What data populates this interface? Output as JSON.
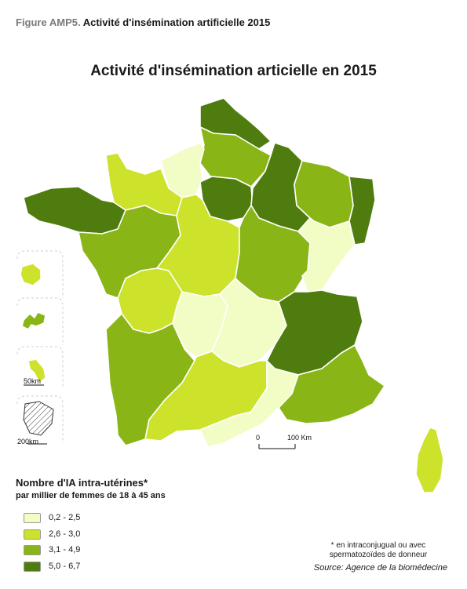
{
  "figure": {
    "number": "Figure AMP5.",
    "caption": "Activité d'insémination artificielle 2015"
  },
  "map_title": "Activité d'insémination articielle en 2015",
  "scale_bar": {
    "label_zero": "0",
    "label_100": "100 Km"
  },
  "insets": [
    {
      "name": "reunion",
      "fill_class": 1
    },
    {
      "name": "guadeloupe",
      "fill_class": 2
    },
    {
      "name": "martinique",
      "fill_class": 1,
      "scale_label": "50km"
    },
    {
      "name": "guyane",
      "fill_class": "nd",
      "scale_label": "200km"
    }
  ],
  "legend": {
    "title": "Nombre d'IA intra-utérines*",
    "subtitle": "par millier de femmes de 18 à 45 ans",
    "items": [
      {
        "label": "0,2 - 2,5",
        "color": "#f2fcc5"
      },
      {
        "label": "2,6 - 3,0",
        "color": "#cce22b"
      },
      {
        "label": "3,1 - 4,9",
        "color": "#8ab517"
      },
      {
        "label": "5,0 - 6,7",
        "color": "#4f7c0f"
      }
    ]
  },
  "regions": [
    {
      "name": "nord",
      "class": 3
    },
    {
      "name": "picardie",
      "class": 2
    },
    {
      "name": "haute-normandie",
      "class": 0
    },
    {
      "name": "basse-normandie",
      "class": 1
    },
    {
      "name": "bretagne",
      "class": 3
    },
    {
      "name": "ile-de-france",
      "class": 3
    },
    {
      "name": "champagne-ardenne",
      "class": 3
    },
    {
      "name": "lorraine",
      "class": 2
    },
    {
      "name": "alsace",
      "class": 3
    },
    {
      "name": "pays-de-la-loire",
      "class": 2
    },
    {
      "name": "centre",
      "class": 1
    },
    {
      "name": "bourgogne",
      "class": 2
    },
    {
      "name": "franche-comte",
      "class": 0
    },
    {
      "name": "poitou-charentes",
      "class": 1
    },
    {
      "name": "limousin",
      "class": 0
    },
    {
      "name": "auvergne",
      "class": 0
    },
    {
      "name": "rhone-alpes",
      "class": 3
    },
    {
      "name": "aquitaine",
      "class": 2
    },
    {
      "name": "midi-pyrenees",
      "class": 1
    },
    {
      "name": "languedoc-roussillon",
      "class": 0
    },
    {
      "name": "paca",
      "class": 2
    },
    {
      "name": "corse",
      "class": 1
    }
  ],
  "note": "* en intraconjugual ou avec spermatozoïdes de donneur",
  "source": "Source: Agence de la biomédecine"
}
